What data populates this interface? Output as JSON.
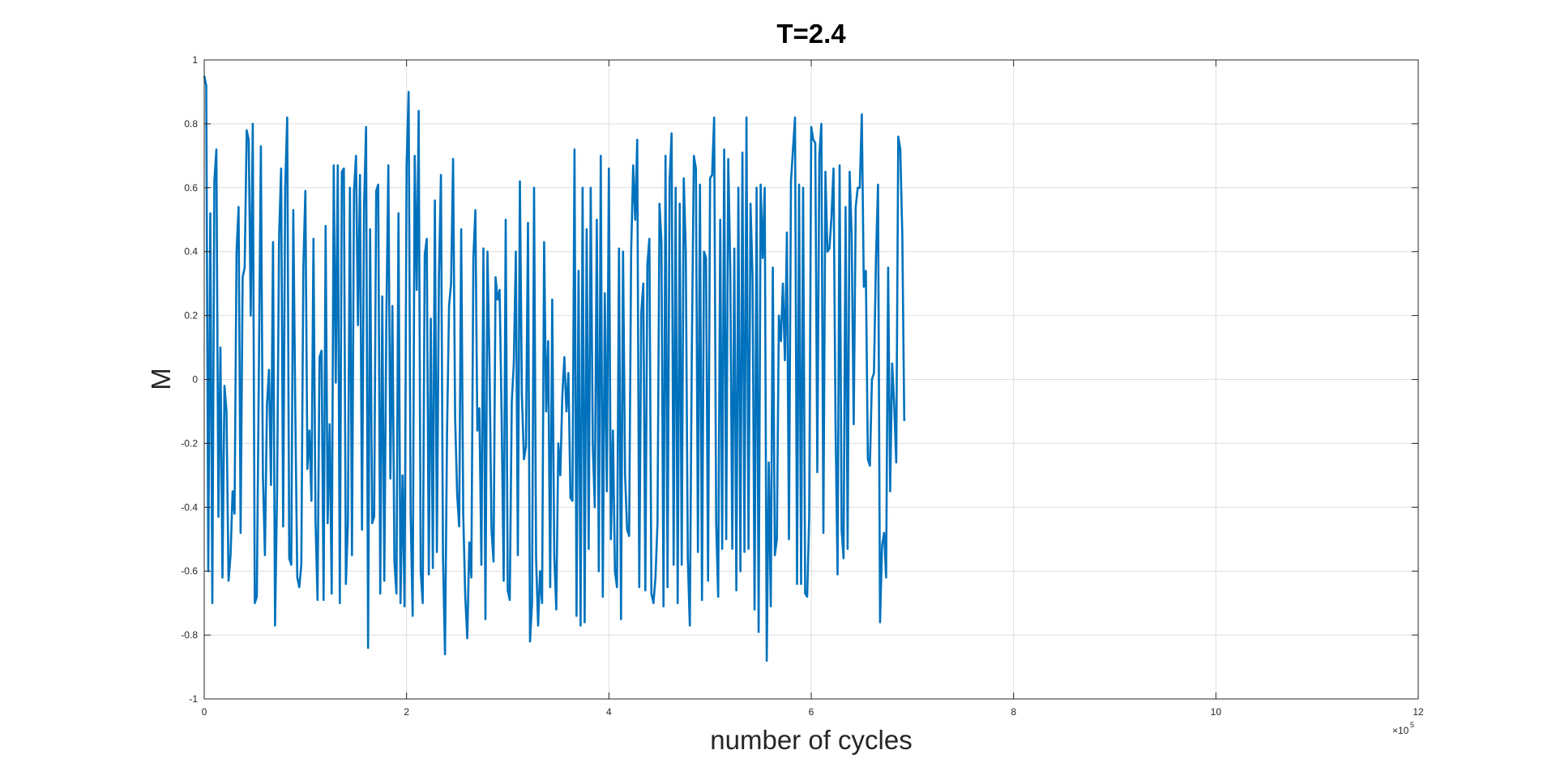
{
  "chart_data": {
    "type": "line",
    "title": "T=2.4",
    "xlabel": "number of cycles",
    "ylabel": "M",
    "x_exponent_label": "×10",
    "x_exponent_power": "5",
    "xlim": [
      0,
      12
    ],
    "ylim": [
      -1,
      1
    ],
    "xticks": [
      0,
      2,
      4,
      6,
      8,
      10,
      12
    ],
    "xtick_labels": [
      "0",
      "2",
      "4",
      "6",
      "8",
      "10",
      "12"
    ],
    "yticks": [
      -1,
      -0.8,
      -0.6,
      -0.4,
      -0.2,
      0,
      0.2,
      0.4,
      0.6,
      0.8,
      1
    ],
    "ytick_labels": [
      "-1",
      "-0.8",
      "-0.6",
      "-0.4",
      "-0.2",
      "0",
      "0.2",
      "0.4",
      "0.6",
      "0.8",
      "1"
    ],
    "grid": true,
    "line_color": "#0072BD",
    "series": [
      {
        "x_start": 0,
        "x_step": 0.02,
        "values": [
          0.95,
          0.92,
          -0.6,
          0.52,
          -0.7,
          0.62,
          0.72,
          -0.43,
          0.1,
          -0.62,
          -0.02,
          -0.1,
          -0.63,
          -0.55,
          -0.35,
          -0.42,
          0.4,
          0.54,
          -0.48,
          0.32,
          0.35,
          0.78,
          0.75,
          0.2,
          0.8,
          -0.7,
          -0.68,
          0.02,
          0.73,
          -0.3,
          -0.55,
          -0.08,
          0.03,
          -0.33,
          0.43,
          -0.77,
          -0.35,
          0.45,
          0.66,
          -0.46,
          0.6,
          0.82,
          -0.56,
          -0.58,
          0.53,
          -0.1,
          -0.62,
          -0.65,
          -0.58,
          0.35,
          0.59,
          -0.28,
          -0.16,
          -0.38,
          0.44,
          -0.44,
          -0.69,
          0.07,
          0.09,
          -0.69,
          0.48,
          -0.45,
          -0.14,
          -0.67,
          0.67,
          -0.01,
          0.67,
          -0.7,
          0.65,
          0.66,
          -0.64,
          -0.45,
          0.6,
          -0.55,
          0.59,
          0.7,
          0.17,
          0.64,
          -0.47,
          0.54,
          0.79,
          -0.84,
          0.47,
          -0.45,
          -0.43,
          0.59,
          0.61,
          -0.67,
          0.26,
          -0.63,
          0.18,
          0.67,
          -0.31,
          0.23,
          -0.57,
          -0.67,
          0.52,
          -0.7,
          -0.3,
          -0.71,
          0.67,
          0.9,
          -0.42,
          -0.74,
          0.7,
          0.28,
          0.84,
          -0.6,
          -0.7,
          0.39,
          0.44,
          -0.61,
          0.19,
          -0.59,
          0.56,
          -0.54,
          0.32,
          0.64,
          -0.55,
          -0.86,
          -0.17,
          0.23,
          0.3,
          0.69,
          -0.12,
          -0.36,
          -0.46,
          0.47,
          -0.42,
          -0.68,
          -0.81,
          -0.51,
          -0.62,
          0.38,
          0.53,
          -0.16,
          -0.09,
          -0.58,
          0.41,
          -0.75,
          0.4,
          0.05,
          -0.47,
          -0.57,
          0.32,
          0.25,
          0.28,
          -0.12,
          -0.63,
          0.5,
          -0.66,
          -0.69,
          -0.07,
          0.05,
          0.4,
          -0.55,
          0.62,
          -0.05,
          -0.25,
          -0.21,
          0.49,
          -0.82,
          -0.7,
          0.6,
          -0.56,
          -0.77,
          -0.6,
          -0.7,
          0.43,
          -0.1,
          0.12,
          -0.65,
          0.25,
          -0.55,
          -0.72,
          -0.2,
          -0.3,
          -0.05,
          0.07,
          -0.1,
          0.02,
          -0.37,
          -0.38,
          0.72,
          -0.74,
          0.34,
          -0.77,
          0.6,
          -0.76,
          0.47,
          -0.53,
          0.6,
          -0.2,
          -0.4,
          0.5,
          -0.6,
          0.7,
          -0.68,
          0.27,
          -0.35,
          0.66,
          -0.5,
          -0.16,
          -0.6,
          -0.65,
          0.41,
          -0.75,
          0.4,
          -0.3,
          -0.47,
          -0.49,
          0.4,
          0.67,
          0.5,
          0.75,
          -0.65,
          0.21,
          0.3,
          -0.66,
          0.36,
          0.44,
          -0.67,
          -0.7,
          -0.62,
          -0.45,
          0.55,
          0.43,
          -0.71,
          0.7,
          -0.65,
          0.62,
          0.77,
          -0.58,
          0.6,
          -0.7,
          0.55,
          -0.58,
          0.63,
          0.4,
          -0.56,
          -0.77,
          0.1,
          0.7,
          0.66,
          -0.54,
          0.61,
          -0.69,
          0.4,
          0.38,
          -0.63,
          0.63,
          0.64,
          0.82,
          -0.45,
          -0.68,
          0.5,
          -0.53,
          0.72,
          -0.5,
          0.69,
          0.35,
          -0.53,
          0.41,
          -0.66,
          0.6,
          -0.6,
          0.71,
          -0.54,
          0.82,
          -0.53,
          0.55,
          0.32,
          -0.72,
          0.6,
          -0.79,
          0.61,
          0.38,
          0.6,
          -0.88,
          -0.26,
          -0.71,
          0.35,
          -0.55,
          -0.5,
          0.2,
          0.12,
          0.3,
          0.06,
          0.46,
          -0.5,
          0.62,
          0.72,
          0.82,
          -0.64,
          0.61,
          -0.64,
          0.6,
          -0.67,
          -0.68,
          -0.43,
          0.79,
          0.75,
          0.74,
          -0.29,
          0.7,
          0.8,
          -0.48,
          0.65,
          0.4,
          0.41,
          0.51,
          0.66,
          -0.14,
          -0.61,
          0.67,
          -0.47,
          -0.56,
          0.54,
          -0.53,
          0.65,
          0.45,
          -0.14,
          0.54,
          0.6,
          0.6,
          0.83,
          0.29,
          0.34,
          -0.25,
          -0.27,
          0.0,
          0.02,
          0.38,
          0.61,
          -0.76,
          -0.52,
          -0.48,
          -0.62,
          0.35,
          -0.35,
          0.05,
          -0.08,
          -0.26,
          0.76,
          0.72,
          0.45,
          -0.13
        ]
      }
    ]
  }
}
